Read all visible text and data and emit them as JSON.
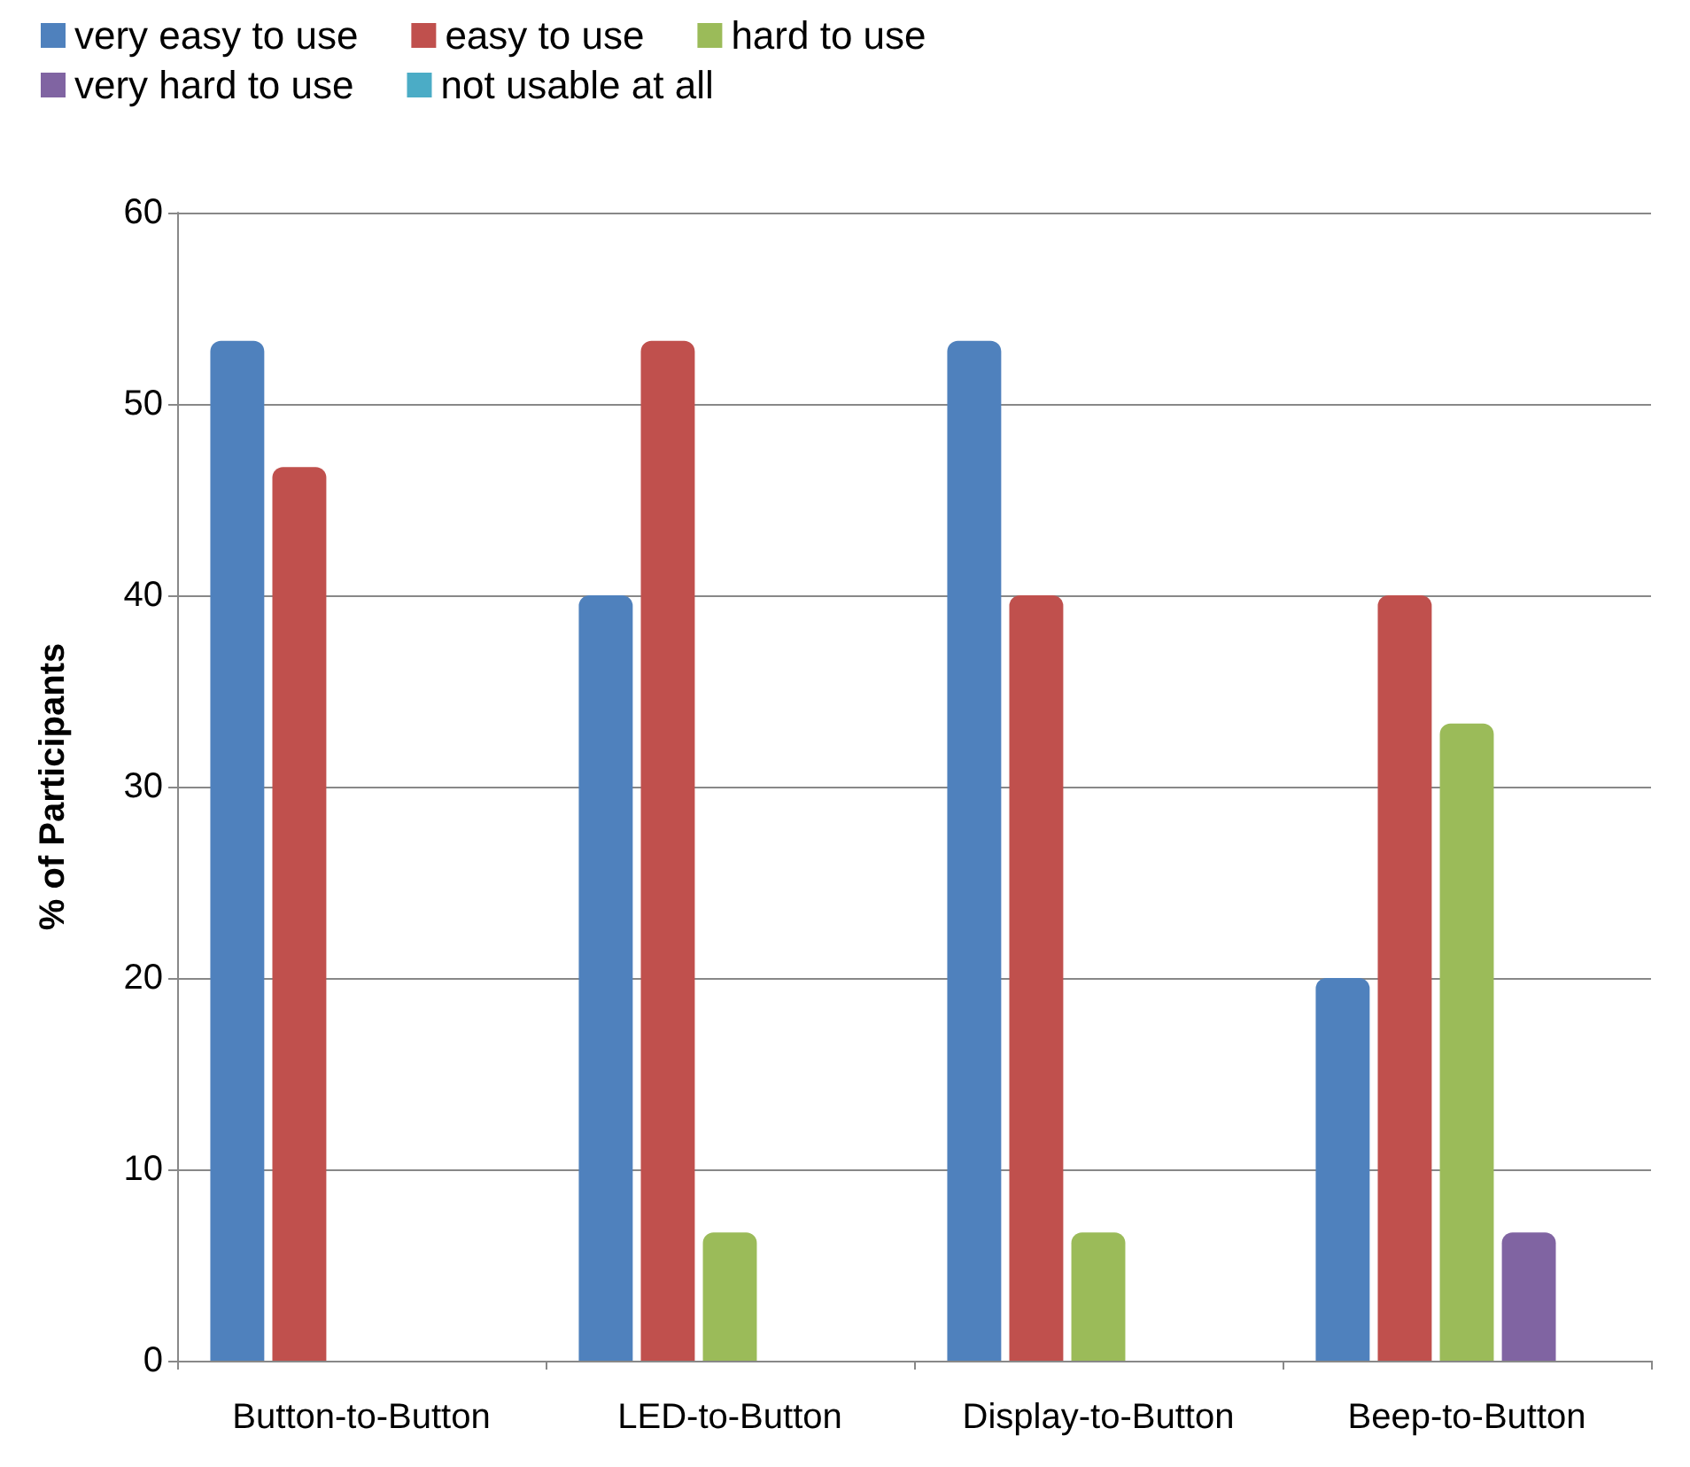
{
  "chart_data": {
    "type": "bar",
    "ylabel": "% of Participants",
    "categories": [
      "Button-to-Button",
      "LED-to-Button",
      "Display-to-Button",
      "Beep-to-Button"
    ],
    "series": [
      {
        "name": "very easy to use",
        "color": "#4f81bd",
        "values": [
          53.3,
          40,
          53.3,
          20
        ]
      },
      {
        "name": "easy to use",
        "color": "#c0504d",
        "values": [
          46.7,
          53.3,
          40,
          40
        ]
      },
      {
        "name": "hard to use",
        "color": "#9bbb59",
        "values": [
          0,
          6.7,
          6.7,
          33.3
        ]
      },
      {
        "name": "very hard to use",
        "color": "#8064a2",
        "values": [
          0,
          0,
          0,
          6.7
        ]
      },
      {
        "name": "not usable at all",
        "color": "#4bacc6",
        "values": [
          0,
          0,
          0,
          0
        ]
      }
    ],
    "ylim": [
      0,
      60
    ],
    "yticks": [
      0,
      10,
      20,
      30,
      40,
      50,
      60
    ],
    "grid": "y",
    "legend": "top"
  }
}
